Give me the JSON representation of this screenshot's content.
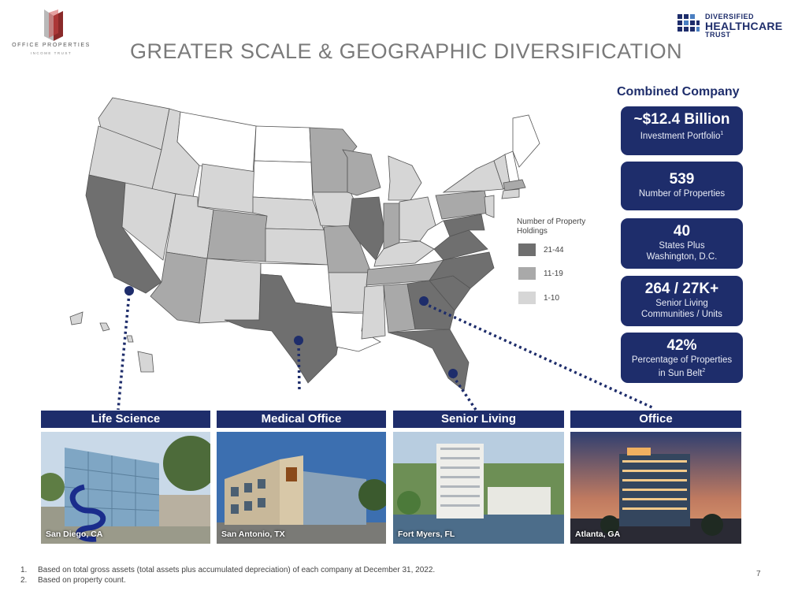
{
  "logos": {
    "opi_name": "OFFICE PROPERTIES",
    "opi_sub": "INCOME TRUST",
    "dhc_line1": "DIVERSIFIED",
    "dhc_line2": "HEALTHCARE",
    "dhc_line3": "TRUST"
  },
  "title": "GREATER SCALE & GEOGRAPHIC DIVERSIFICATION",
  "legend": {
    "title": "Number of Property Holdings",
    "items": [
      {
        "label": "21-44",
        "color": "#6f6f6f"
      },
      {
        "label": "11-19",
        "color": "#a9a9a9"
      },
      {
        "label": "1-10",
        "color": "#d6d6d6"
      }
    ]
  },
  "combined": {
    "heading": "Combined Company",
    "stats": [
      {
        "value": "~$12.4 Billion",
        "line1": "Investment Portfolio",
        "sup": "1",
        "line2": ""
      },
      {
        "value": "539",
        "line1": "Number of Properties",
        "sup": "",
        "line2": ""
      },
      {
        "value": "40",
        "line1": "States Plus",
        "sup": "",
        "line2": "Washington, D.C."
      },
      {
        "value": "264 / 27K+",
        "line1": "Senior Living",
        "sup": "",
        "line2": "Communities / Units"
      },
      {
        "value": "42%",
        "line1": "Percentage of Properties",
        "sup": "",
        "line2": "in Sun Belt",
        "sup2": "2"
      }
    ]
  },
  "segments": [
    {
      "name": "Life Science",
      "location": "San Diego, CA"
    },
    {
      "name": "Medical Office",
      "location": "San Antonio, TX"
    },
    {
      "name": "Senior Living",
      "location": "Fort Myers, FL"
    },
    {
      "name": "Office",
      "location": "Atlanta, GA"
    }
  ],
  "footnotes": [
    {
      "num": "1.",
      "text": "Based on total gross assets (total assets plus accumulated depreciation) of each company at December 31, 2022."
    },
    {
      "num": "2.",
      "text": "Based on property count."
    }
  ],
  "page_number": "7",
  "colors": {
    "navy": "#1e2d6b",
    "dark": "#6f6f6f",
    "mid": "#a9a9a9",
    "light": "#d6d6d6"
  }
}
